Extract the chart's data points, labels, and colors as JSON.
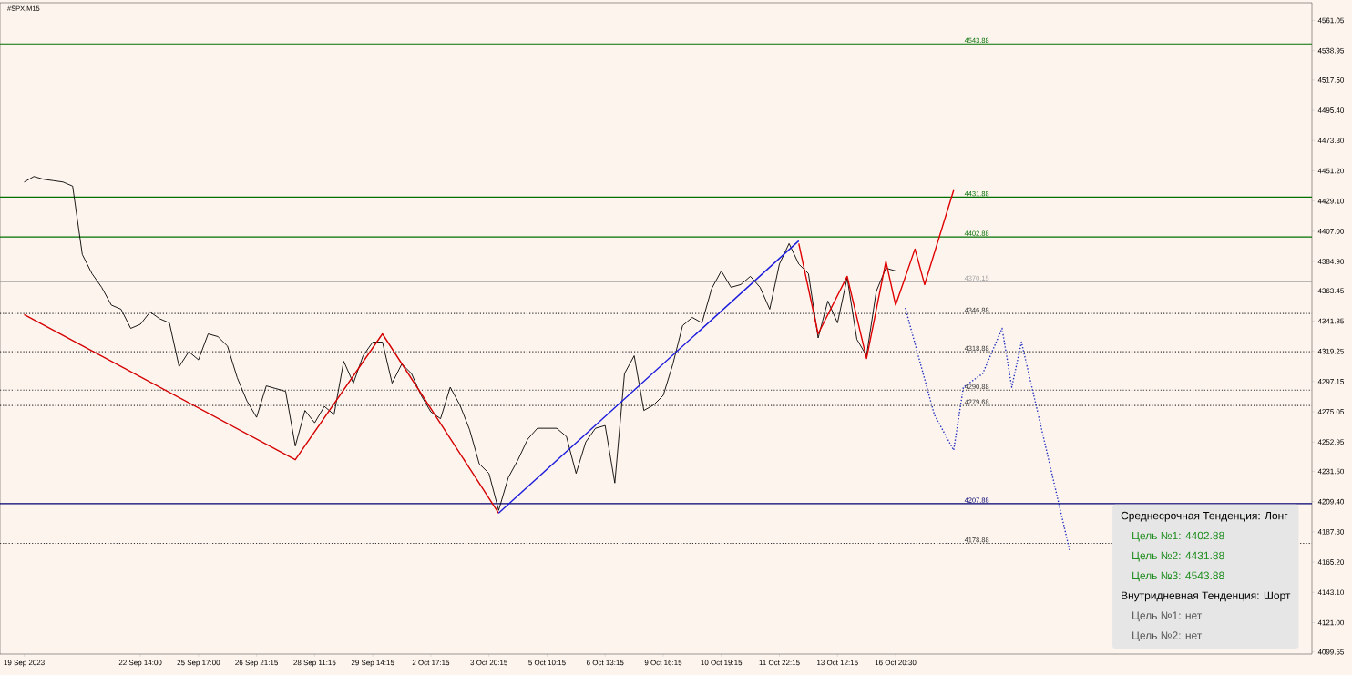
{
  "chart_data": {
    "type": "line",
    "title": "#SPX,M15",
    "categories": [
      "19 Sep 2023",
      null,
      null,
      null,
      null,
      null,
      null,
      null,
      null,
      null,
      null,
      null,
      "22 Sep 14:00",
      null,
      null,
      null,
      null,
      null,
      "25 Sep 17:00",
      null,
      null,
      null,
      null,
      null,
      "26 Sep 21:15",
      null,
      null,
      null,
      null,
      null,
      "28 Sep 11:15",
      null,
      null,
      null,
      null,
      null,
      "29 Sep 14:15",
      null,
      null,
      null,
      null,
      null,
      "2 Oct 17:15",
      null,
      null,
      null,
      null,
      null,
      "3 Oct 20:15",
      null,
      null,
      null,
      null,
      null,
      "5 Oct 10:15",
      null,
      null,
      null,
      null,
      null,
      "6 Oct 13:15",
      null,
      null,
      null,
      null,
      null,
      "9 Oct 16:15",
      null,
      null,
      null,
      null,
      null,
      "10 Oct 19:15",
      null,
      null,
      null,
      null,
      null,
      "11 Oct 22:15",
      null,
      null,
      null,
      null,
      null,
      "13 Oct 12:15",
      null,
      null,
      null,
      null,
      null,
      "16 Oct 20:30",
      null,
      null,
      null,
      null,
      null,
      null,
      null,
      null,
      null,
      null,
      null,
      null,
      null,
      null,
      null,
      null,
      null,
      null,
      null,
      null,
      null,
      null,
      null,
      null,
      null,
      null,
      null,
      null,
      null,
      null,
      null,
      null,
      null,
      null,
      null,
      null,
      null,
      null,
      null,
      null,
      null,
      null,
      null
    ],
    "series": [
      {
        "color": "#000000",
        "values": [
          4443,
          4447,
          4445,
          4444,
          4443,
          4440,
          4390,
          4376,
          4366,
          4353,
          4350,
          4336,
          4339,
          4348,
          4343,
          4340,
          4308,
          4319,
          4313,
          4332,
          4330,
          4323,
          4300,
          4283,
          4271,
          4294,
          4292,
          4290,
          4250,
          4276,
          4267,
          4279,
          4273,
          4312,
          4296,
          4316,
          4326,
          4326,
          4296,
          4310,
          4303,
          4287,
          4275,
          4270,
          4293,
          4280,
          4262,
          4237,
          4230,
          4203,
          4227,
          4240,
          4255,
          4263,
          4263,
          4263,
          4257,
          4230,
          4253,
          4263,
          4265,
          4223,
          4303,
          4316,
          4276,
          4280,
          4287,
          4310,
          4338,
          4344,
          4340,
          4365,
          4378,
          4366,
          4368,
          4374,
          4366,
          4350,
          4383,
          4398,
          4383,
          4376,
          4329,
          4356,
          4340,
          4373,
          4328,
          4316,
          4363,
          4380,
          4378,
          null,
          null,
          null,
          null,
          null,
          null,
          null,
          null,
          null,
          null,
          null,
          null,
          null,
          null,
          null,
          null,
          null,
          null,
          null,
          null,
          null,
          null,
          null,
          null,
          null,
          null,
          null,
          null,
          null,
          null,
          null,
          null,
          null,
          null,
          null,
          null,
          null,
          null,
          null,
          null,
          null,
          null,
          null
        ]
      },
      {
        "color": "#d40000",
        "values": [
          4346,
          null,
          null,
          null,
          null,
          null,
          null,
          null,
          null,
          null,
          null,
          null,
          null,
          null,
          null,
          null,
          null,
          null,
          null,
          null,
          null,
          null,
          null,
          null,
          null,
          null,
          null,
          null,
          4240,
          null,
          null,
          null,
          null,
          null,
          null,
          null,
          null,
          4332,
          null,
          null,
          null,
          null,
          null,
          null,
          null,
          null,
          null,
          null,
          null,
          4201,
          null,
          null,
          null,
          null,
          null,
          null,
          null,
          null,
          null,
          null,
          null,
          null,
          null,
          null,
          null,
          null,
          null,
          null,
          null,
          null,
          null,
          null,
          null,
          null,
          null,
          null,
          null,
          null,
          null,
          null,
          null,
          null,
          null,
          null,
          null,
          null,
          null,
          null,
          null,
          null,
          null,
          null,
          null,
          null,
          null,
          null,
          null,
          null,
          null,
          null,
          null,
          null,
          null,
          null,
          null,
          null,
          null,
          null,
          null,
          null,
          null,
          null,
          null,
          null,
          null,
          null,
          null,
          null,
          null,
          null,
          null,
          null,
          null,
          null,
          null,
          null,
          null,
          null,
          null,
          null,
          null,
          null,
          null,
          null
        ]
      },
      {
        "color": "#1a1adb",
        "values": [
          null,
          null,
          null,
          null,
          null,
          null,
          null,
          null,
          null,
          null,
          null,
          null,
          null,
          null,
          null,
          null,
          null,
          null,
          null,
          null,
          null,
          null,
          null,
          null,
          null,
          null,
          null,
          null,
          null,
          null,
          null,
          null,
          null,
          null,
          null,
          null,
          null,
          null,
          null,
          null,
          null,
          null,
          null,
          null,
          null,
          null,
          null,
          null,
          null,
          4201,
          null,
          null,
          null,
          null,
          null,
          null,
          null,
          null,
          null,
          null,
          null,
          null,
          null,
          null,
          null,
          null,
          null,
          null,
          null,
          null,
          null,
          null,
          null,
          null,
          null,
          null,
          null,
          null,
          null,
          null,
          4400,
          null,
          null,
          null,
          null,
          null,
          null,
          null,
          null,
          null,
          null,
          null,
          null,
          null,
          null,
          null,
          null,
          null,
          null,
          null,
          null,
          null,
          null,
          null,
          null,
          null,
          null,
          null,
          null,
          null,
          null,
          null,
          null,
          null,
          null,
          null,
          null,
          null,
          null,
          null,
          null,
          null,
          null,
          null,
          null,
          null,
          null,
          null,
          null,
          null,
          null,
          null,
          null,
          null
        ]
      },
      {
        "color": "#e00000",
        "values": [
          null,
          null,
          null,
          null,
          null,
          null,
          null,
          null,
          null,
          null,
          null,
          null,
          null,
          null,
          null,
          null,
          null,
          null,
          null,
          null,
          null,
          null,
          null,
          null,
          null,
          null,
          null,
          null,
          null,
          null,
          null,
          null,
          null,
          null,
          null,
          null,
          null,
          null,
          null,
          null,
          null,
          null,
          null,
          null,
          null,
          null,
          null,
          null,
          null,
          null,
          null,
          null,
          null,
          null,
          null,
          null,
          null,
          null,
          null,
          null,
          null,
          null,
          null,
          null,
          null,
          null,
          null,
          null,
          null,
          null,
          null,
          null,
          null,
          null,
          null,
          null,
          null,
          null,
          null,
          null,
          4398,
          null,
          4332,
          null,
          null,
          4374,
          null,
          4314,
          null,
          4385,
          4353,
          null,
          4394,
          4368,
          null,
          null,
          4437,
          null,
          null,
          null,
          null,
          null,
          null,
          null,
          null,
          null,
          null,
          null,
          null,
          null,
          null,
          null,
          null,
          null,
          null,
          null,
          null,
          null,
          null,
          null,
          null,
          null,
          null,
          null,
          null,
          null,
          null,
          null,
          null,
          null,
          null,
          null,
          null,
          null
        ]
      },
      {
        "color": "#2030c0",
        "line_style": "dotted",
        "values": [
          null,
          null,
          null,
          null,
          null,
          null,
          null,
          null,
          null,
          null,
          null,
          null,
          null,
          null,
          null,
          null,
          null,
          null,
          null,
          null,
          null,
          null,
          null,
          null,
          null,
          null,
          null,
          null,
          null,
          null,
          null,
          null,
          null,
          null,
          null,
          null,
          null,
          null,
          null,
          null,
          null,
          null,
          null,
          null,
          null,
          null,
          null,
          null,
          null,
          null,
          null,
          null,
          null,
          null,
          null,
          null,
          null,
          null,
          null,
          null,
          null,
          null,
          null,
          null,
          null,
          null,
          null,
          null,
          null,
          null,
          null,
          null,
          null,
          null,
          null,
          null,
          null,
          null,
          null,
          null,
          null,
          null,
          null,
          null,
          null,
          null,
          null,
          null,
          null,
          null,
          null,
          4351,
          null,
          null,
          4273,
          null,
          4247,
          4293,
          null,
          4303,
          null,
          4336,
          4293,
          4326,
          null,
          null,
          null,
          null,
          4173,
          null,
          null,
          null,
          null,
          null,
          null,
          null,
          null,
          null,
          null,
          null,
          null,
          null,
          null,
          null,
          null,
          null,
          null,
          null,
          null,
          null,
          null,
          null,
          null,
          null
        ]
      }
    ],
    "ylim": [
      4098,
      4574
    ],
    "yticks": [
      {
        "value": 4561.05,
        "label": "4561.05"
      },
      {
        "value": 4538.95,
        "label": "4538.95"
      },
      {
        "value": 4517.5,
        "label": "4517.50"
      },
      {
        "value": 4495.4,
        "label": "4495.40"
      },
      {
        "value": 4473.3,
        "label": "4473.30"
      },
      {
        "value": 4451.2,
        "label": "4451.20"
      },
      {
        "value": 4429.1,
        "label": "4429.10"
      },
      {
        "value": 4407.0,
        "label": "4407.00"
      },
      {
        "value": 4384.9,
        "label": "4384.90"
      },
      {
        "value": 4363.45,
        "label": "4363.45"
      },
      {
        "value": 4341.35,
        "label": "4341.35"
      },
      {
        "value": 4319.25,
        "label": "4319.25"
      },
      {
        "value": 4297.15,
        "label": "4297.15"
      },
      {
        "value": 4275.05,
        "label": "4275.05"
      },
      {
        "value": 4252.95,
        "label": "4252.95"
      },
      {
        "value": 4231.5,
        "label": "4231.50"
      },
      {
        "value": 4209.4,
        "label": "4209.40"
      },
      {
        "value": 4187.3,
        "label": "4187.30"
      },
      {
        "value": 4165.2,
        "label": "4165.20"
      },
      {
        "value": 4143.1,
        "label": "4143.10"
      },
      {
        "value": 4121.0,
        "label": "4121.00"
      },
      {
        "value": 4099.55,
        "label": "4099.55"
      }
    ],
    "ref_lines": [
      {
        "axis": "y",
        "value": 4543.88,
        "label": "4543.88",
        "color": "#007000",
        "line_style": "solid"
      },
      {
        "axis": "y",
        "value": 4431.88,
        "label": "4431.88",
        "color": "#007000",
        "line_style": "solid"
      },
      {
        "axis": "y",
        "value": 4402.88,
        "label": "4402.88",
        "color": "#007000",
        "line_style": "solid"
      },
      {
        "axis": "y",
        "value": 4370.15,
        "label": "4370.15",
        "color": "#a0a0a0",
        "line_style": "solid"
      },
      {
        "axis": "y",
        "value": 4346.88,
        "label": "4346.88",
        "color": "#333333",
        "line_style": "dotted"
      },
      {
        "axis": "y",
        "value": 4318.88,
        "label": "4318.88",
        "color": "#333333",
        "line_style": "dotted"
      },
      {
        "axis": "y",
        "value": 4290.88,
        "label": "4290.88",
        "color": "#333333",
        "line_style": "dotted"
      },
      {
        "axis": "y",
        "value": 4279.68,
        "label": "4279.68",
        "color": "#333333",
        "line_style": "dotted"
      },
      {
        "axis": "y",
        "value": 4207.88,
        "label": "4207.88",
        "color": "#000070",
        "line_style": "solid"
      },
      {
        "axis": "y",
        "value": 4178.88,
        "label": "4178.88",
        "color": "#333333",
        "line_style": "dotted"
      }
    ],
    "annotations": [
      "Среднесрочная Тенденция: Лонг",
      "Цель №1: 4402.88",
      "Цель №2: 4431.88",
      "Цель №3: 4543.88",
      "Внутридневная Тенденция: Шорт",
      "Цель №1: нет",
      "Цель №2: нет"
    ]
  }
}
